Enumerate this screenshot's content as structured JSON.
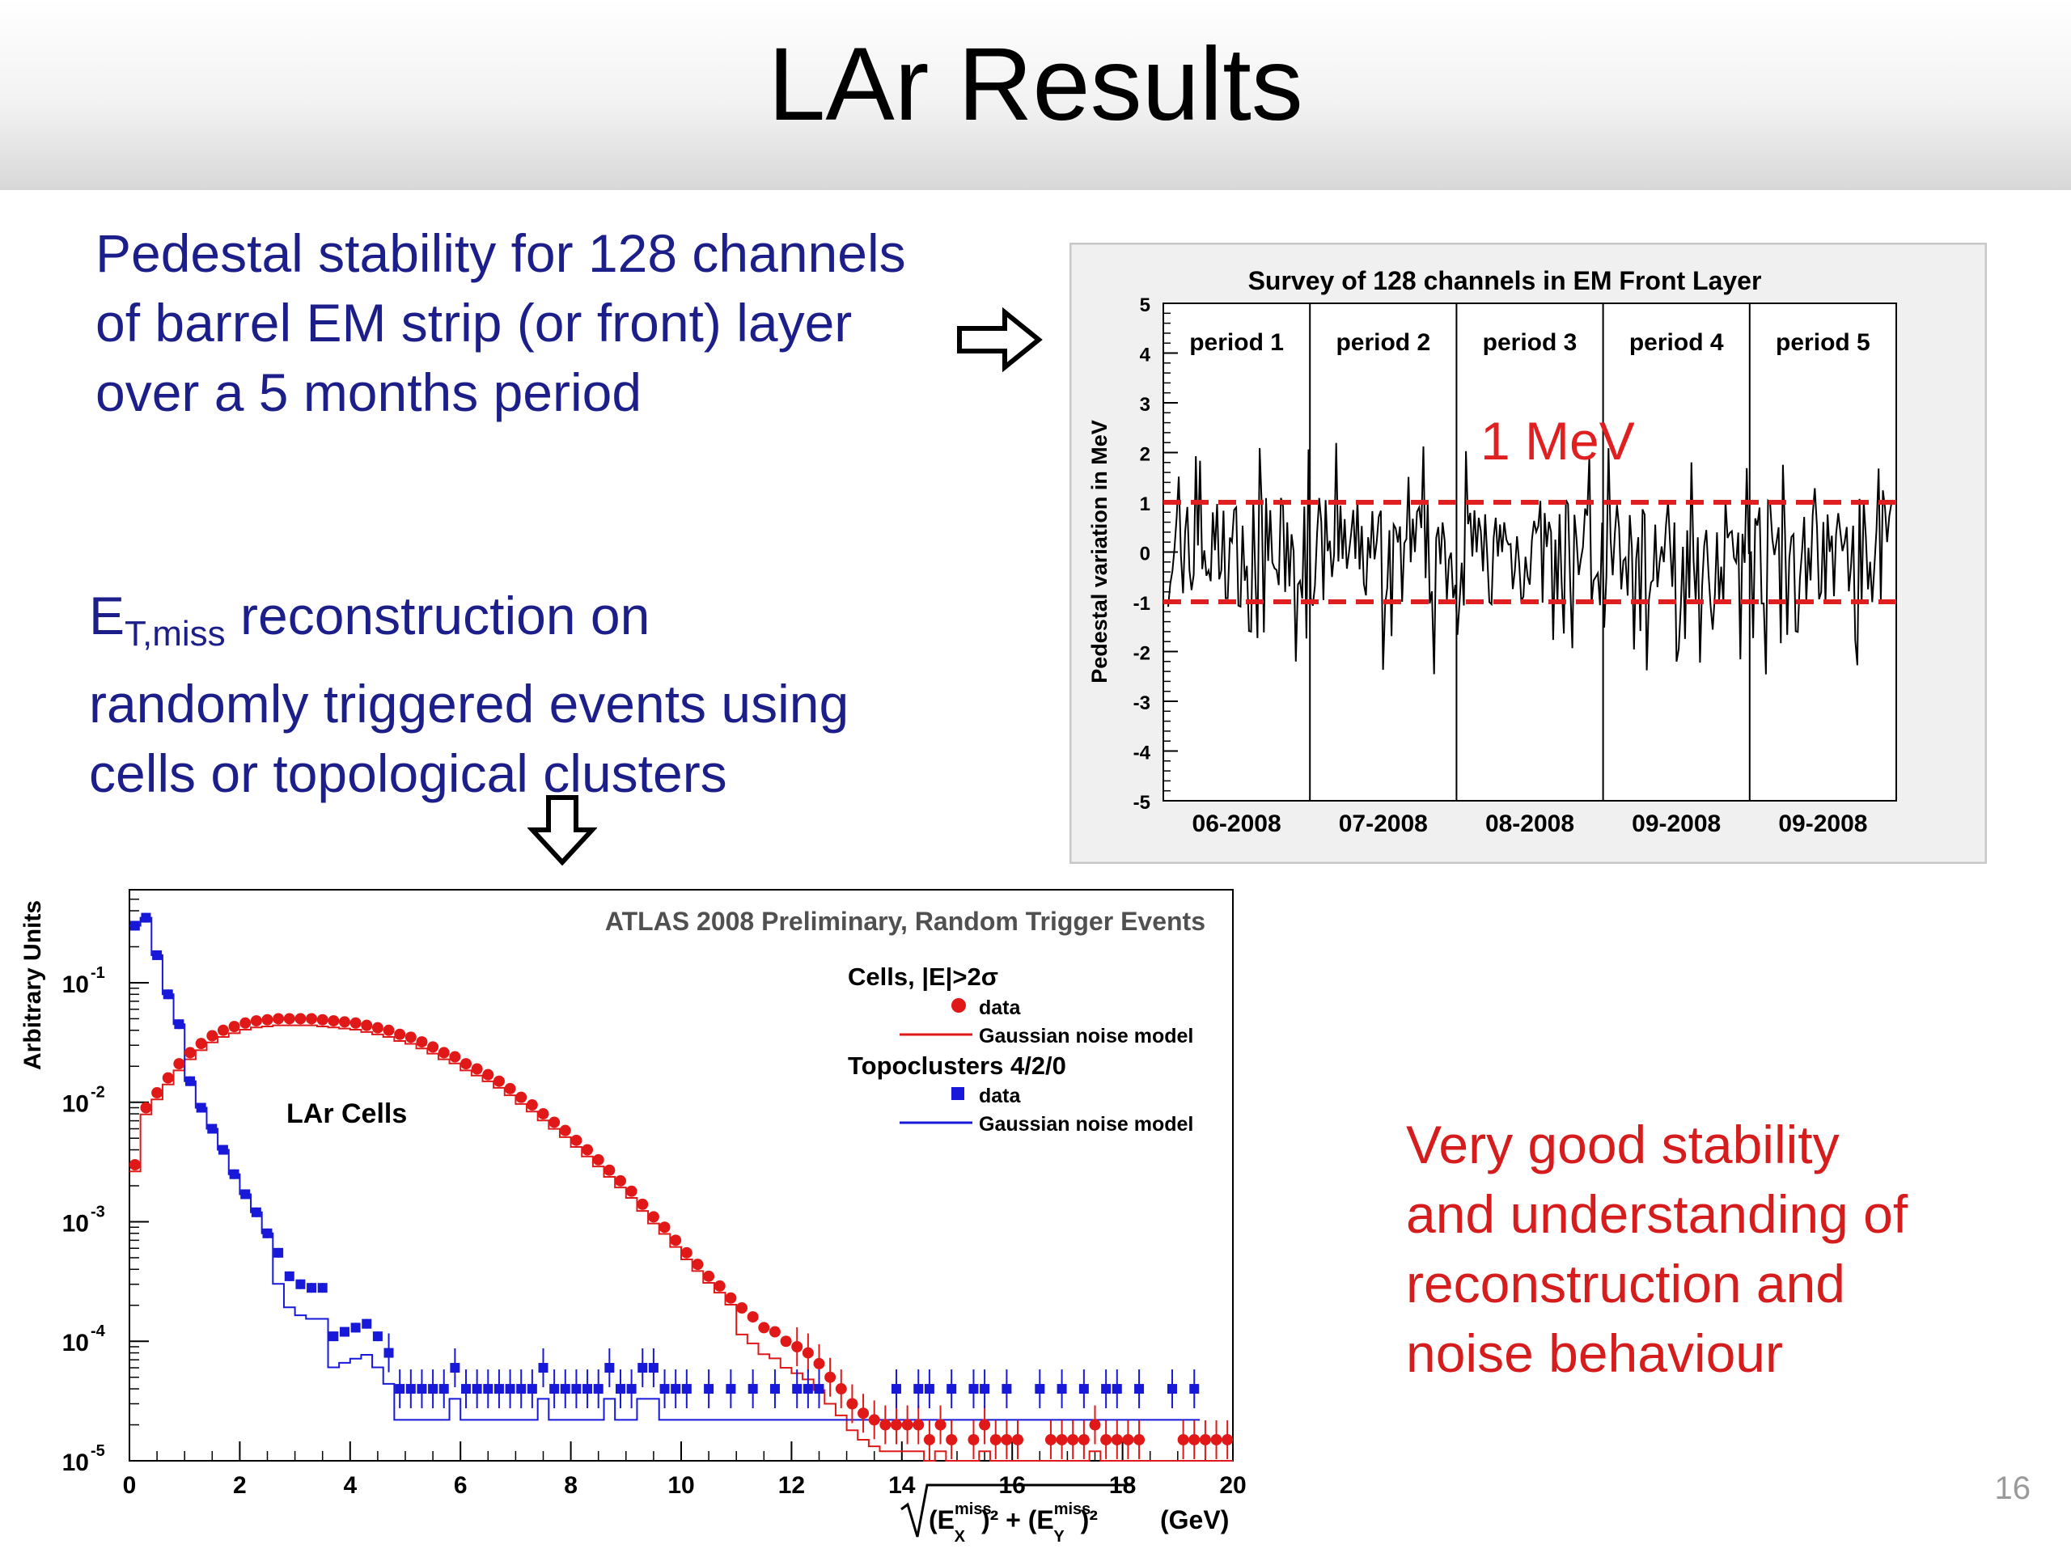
{
  "slide": {
    "title": "LAr Results",
    "pedestal_text_lines": [
      "Pedestal stability for 128 channels",
      "of barrel EM strip (or front) layer",
      "over a 5 months period"
    ],
    "etmiss_text": {
      "e_main": "E",
      "e_sub": "T,miss",
      "rest_line1": " reconstruction on",
      "line2": "randomly triggered events using",
      "line3": "cells or topological clusters"
    },
    "conclusion_lines": [
      "Very good stability",
      "and understanding of",
      "reconstruction and",
      "noise behaviour"
    ],
    "page_number": "16"
  },
  "chart_data": [
    {
      "type": "line",
      "title": "Survey of 128 channels in EM Front Layer",
      "ylabel": "Pedestal variation in MeV",
      "ylim": [
        -5,
        5
      ],
      "yticks": [
        "5",
        "4",
        "3",
        "2",
        "1",
        "0",
        "-1",
        "-2",
        "-3",
        "-4",
        "-5"
      ],
      "periods": [
        {
          "label": "period 1",
          "month": "06-2008"
        },
        {
          "label": "period 2",
          "month": "07-2008"
        },
        {
          "label": "period 3",
          "month": "08-2008"
        },
        {
          "label": "period 4",
          "month": "09-2008"
        },
        {
          "label": "period 5",
          "month": "09-2008"
        }
      ],
      "band": {
        "label": "1 MeV",
        "lower": -1,
        "upper": 1,
        "color": "#e02020"
      },
      "series_color": "#000000",
      "variation_envelope": {
        "min": -2.5,
        "max": 2.2
      },
      "grid": false
    },
    {
      "type": "scatter",
      "annotation": "ATLAS 2008 Preliminary, Random Trigger Events",
      "inner_label": "LAr Cells",
      "ylabel": "Arbitrary Units",
      "xlabel_parts": {
        "e": "(E",
        "x_sup": "miss",
        "x_sub": "X",
        "plus": ")² + (E",
        "y_sup": "miss",
        "y_sub": "Y",
        "close": ")²",
        "unit": "(GeV)"
      },
      "xlim": [
        0,
        20
      ],
      "xticks": [
        "0",
        "2",
        "4",
        "6",
        "8",
        "10",
        "12",
        "14",
        "16",
        "18",
        "20"
      ],
      "ylog": true,
      "ylim": [
        1e-05,
        0.6
      ],
      "yticks": [
        {
          "base": "10",
          "exp": "-1",
          "value": 0.1
        },
        {
          "base": "10",
          "exp": "-2",
          "value": 0.01
        },
        {
          "base": "10",
          "exp": "-3",
          "value": 0.001
        },
        {
          "base": "10",
          "exp": "-4",
          "value": 0.0001
        },
        {
          "base": "10",
          "exp": "-5",
          "value": 1e-05
        }
      ],
      "legend": {
        "group1": "Cells, |E|>2σ",
        "group1_data": "data",
        "group1_model": "Gaussian noise model",
        "group2": "Topoclusters 4/2/0",
        "group2_data": "data",
        "group2_model": "Gaussian noise model"
      },
      "series": [
        {
          "name": "Cells, |E|>2σ",
          "color": "#e01818",
          "x": [
            0.1,
            0.3,
            0.5,
            0.7,
            0.9,
            1.1,
            1.3,
            1.5,
            1.7,
            1.9,
            2.1,
            2.3,
            2.5,
            2.7,
            2.9,
            3.1,
            3.3,
            3.5,
            3.7,
            3.9,
            4.1,
            4.3,
            4.5,
            4.7,
            4.9,
            5.1,
            5.3,
            5.5,
            5.7,
            5.9,
            6.1,
            6.3,
            6.5,
            6.7,
            6.9,
            7.1,
            7.3,
            7.5,
            7.7,
            7.9,
            8.1,
            8.3,
            8.5,
            8.7,
            8.9,
            9.1,
            9.3,
            9.5,
            9.7,
            9.9,
            10.1,
            10.3,
            10.5,
            10.7,
            10.9,
            11.1,
            11.3,
            11.5,
            11.7,
            11.9,
            12.1,
            12.3,
            12.5,
            12.7,
            12.9,
            13.1,
            13.3,
            13.5,
            13.7,
            13.9,
            14.1,
            14.3,
            14.5,
            14.7,
            14.9,
            15.3,
            15.5,
            15.7,
            15.9,
            16.1,
            16.7,
            16.9,
            17.1,
            17.3,
            17.5,
            17.7,
            17.9,
            18.1,
            18.3,
            19.1,
            19.3,
            19.5,
            19.7,
            19.9
          ],
          "y": [
            0.003,
            0.009,
            0.012,
            0.016,
            0.021,
            0.026,
            0.031,
            0.036,
            0.04,
            0.043,
            0.046,
            0.048,
            0.049,
            0.05,
            0.05,
            0.05,
            0.05,
            0.049,
            0.048,
            0.047,
            0.046,
            0.044,
            0.042,
            0.04,
            0.037,
            0.035,
            0.032,
            0.029,
            0.026,
            0.024,
            0.021,
            0.019,
            0.017,
            0.015,
            0.013,
            0.011,
            0.0095,
            0.008,
            0.0068,
            0.0058,
            0.0048,
            0.004,
            0.0033,
            0.0027,
            0.0022,
            0.0018,
            0.0014,
            0.0011,
            0.0009,
            0.0007,
            0.00055,
            0.00044,
            0.00035,
            0.00029,
            0.00023,
            0.00019,
            0.00016,
            0.00013,
            0.00012,
            0.0001,
            9e-05,
            8e-05,
            6.5e-05,
            5e-05,
            4e-05,
            3e-05,
            2.5e-05,
            2.2e-05,
            2e-05,
            2e-05,
            2e-05,
            2e-05,
            1.5e-05,
            2e-05,
            1.5e-05,
            1.5e-05,
            2e-05,
            1.5e-05,
            1.5e-05,
            1.5e-05,
            1.5e-05,
            1.5e-05,
            1.5e-05,
            1.5e-05,
            2e-05,
            1.5e-05,
            1.5e-05,
            1.5e-05,
            1.5e-05,
            1.5e-05,
            1.5e-05,
            1.5e-05,
            1.5e-05,
            1.5e-05
          ]
        },
        {
          "name": "Topoclusters 4/2/0",
          "color": "#1818d8",
          "x": [
            0.1,
            0.3,
            0.5,
            0.7,
            0.9,
            1.1,
            1.3,
            1.5,
            1.7,
            1.9,
            2.1,
            2.3,
            2.5,
            2.7,
            2.9,
            3.1,
            3.3,
            3.5,
            3.7,
            3.9,
            4.1,
            4.3,
            4.5,
            4.7,
            4.9,
            5.1,
            5.3,
            5.5,
            5.7,
            5.9,
            6.1,
            6.3,
            6.5,
            6.7,
            6.9,
            7.1,
            7.3,
            7.5,
            7.7,
            7.9,
            8.1,
            8.3,
            8.5,
            8.7,
            8.9,
            9.1,
            9.3,
            9.5,
            9.7,
            9.9,
            10.1,
            10.5,
            10.9,
            11.3,
            11.7,
            12.1,
            12.3,
            12.5,
            13.9,
            14.3,
            14.5,
            14.9,
            15.3,
            15.5,
            15.9,
            16.5,
            16.9,
            17.3,
            17.7,
            17.9,
            18.3,
            18.9,
            19.3
          ],
          "y": [
            0.3,
            0.35,
            0.17,
            0.08,
            0.045,
            0.015,
            0.009,
            0.006,
            0.004,
            0.0025,
            0.0017,
            0.0012,
            0.0008,
            0.00055,
            0.00035,
            0.0003,
            0.00028,
            0.00028,
            0.00011,
            0.00012,
            0.00013,
            0.00014,
            0.00011,
            8e-05,
            4e-05,
            4e-05,
            4e-05,
            4e-05,
            4e-05,
            6e-05,
            4e-05,
            4e-05,
            4e-05,
            4e-05,
            4e-05,
            4e-05,
            4e-05,
            6e-05,
            4e-05,
            4e-05,
            4e-05,
            4e-05,
            4e-05,
            6e-05,
            4e-05,
            4e-05,
            6e-05,
            6e-05,
            4e-05,
            4e-05,
            4e-05,
            4e-05,
            4e-05,
            4e-05,
            4e-05,
            4e-05,
            4e-05,
            4e-05,
            4e-05,
            4e-05,
            4e-05,
            4e-05,
            4e-05,
            4e-05,
            4e-05,
            4e-05,
            4e-05,
            4e-05,
            4e-05,
            4e-05,
            4e-05,
            4e-05,
            4e-05
          ]
        },
        {
          "name": "Gaussian noise model",
          "color": "#e01818",
          "style": "step"
        },
        {
          "name": "Gaussian noise model",
          "color": "#1818d8",
          "style": "step"
        }
      ],
      "grid": false
    }
  ]
}
